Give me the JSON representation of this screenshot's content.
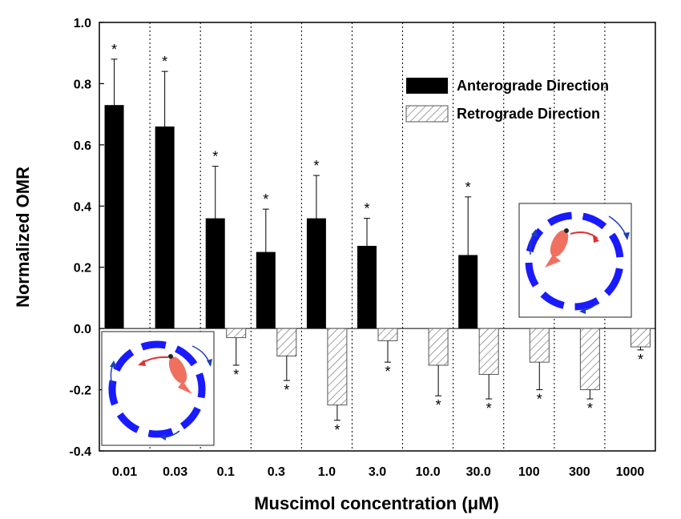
{
  "chart_data": {
    "type": "bar",
    "xlabel": "Muscimol concentration (",
    "xlabel_unit": "μM",
    "xlabel_close": ")",
    "ylabel": "Normalized OMR",
    "ylim": [
      -0.4,
      1.0
    ],
    "yticks": [
      "1.0",
      "0.8",
      "0.6",
      "0.4",
      "0.2",
      "0.0",
      "-0.2",
      "-0.4"
    ],
    "ytick_values": [
      1.0,
      0.8,
      0.6,
      0.4,
      0.2,
      0.0,
      -0.2,
      -0.4
    ],
    "categories": [
      "0.01",
      "0.03",
      "0.1",
      "0.3",
      "1.0",
      "3.0",
      "10.0",
      "30.0",
      "100",
      "300",
      "1000"
    ],
    "series": [
      {
        "name": "Anterograde Direction",
        "fill": "solid",
        "color": "#000000",
        "values": [
          0.73,
          0.66,
          0.36,
          0.25,
          0.36,
          0.27,
          null,
          0.24,
          null,
          null,
          null
        ],
        "errors": [
          0.15,
          0.18,
          0.17,
          0.14,
          0.14,
          0.09,
          null,
          0.19,
          null,
          null,
          null
        ],
        "significant": [
          true,
          true,
          true,
          true,
          true,
          true,
          false,
          true,
          false,
          false,
          false
        ]
      },
      {
        "name": "Retrograde Direction",
        "fill": "hatched",
        "color": "#555555",
        "values": [
          null,
          null,
          -0.03,
          -0.09,
          -0.25,
          -0.04,
          -0.12,
          -0.15,
          -0.11,
          -0.2,
          -0.06
        ],
        "errors": [
          null,
          null,
          0.09,
          0.08,
          0.05,
          0.07,
          0.1,
          0.08,
          0.09,
          0.03,
          0.01
        ],
        "significant": [
          false,
          false,
          true,
          true,
          true,
          true,
          true,
          true,
          true,
          true,
          true
        ]
      }
    ],
    "significance_marker": "*",
    "legend_position": "top-right",
    "grid": "vertical dotted separators between categories",
    "insets": [
      {
        "position": "bottom-left",
        "fish_direction": "left"
      },
      {
        "position": "right",
        "fish_direction": "right"
      }
    ]
  }
}
